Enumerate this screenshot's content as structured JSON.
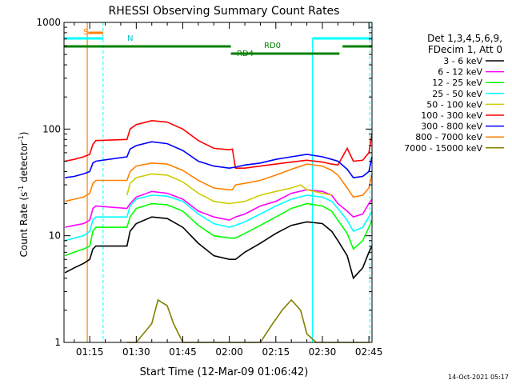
{
  "chart_data": {
    "type": "line",
    "title": "RHESSI Observing Summary Count Rates",
    "xlabel": "Start Time (12-Mar-09 01:06:42)",
    "ylabel_main": "Count Rate (s",
    "ylabel_sup1": "-1",
    "ylabel_mid": " detector",
    "ylabel_sup2": "-1",
    "ylabel_end": ")",
    "y_scale": "log",
    "ylim": [
      1,
      1000
    ],
    "x_range": [
      "01:06:42",
      "02:46:00"
    ],
    "x_ticks": [
      {
        "label": "01:15",
        "t": 75
      },
      {
        "label": "01:30",
        "t": 90
      },
      {
        "label": "01:45",
        "t": 105
      },
      {
        "label": "02:00",
        "t": 120
      },
      {
        "label": "02:15",
        "t": 135
      },
      {
        "label": "02:30",
        "t": 150
      },
      {
        "label": "02:45",
        "t": 165
      }
    ],
    "y_ticks": [
      {
        "label": "1",
        "v": 1
      },
      {
        "label": "10",
        "v": 10
      },
      {
        "label": "100",
        "v": 100
      },
      {
        "label": "1000",
        "v": 1000
      }
    ],
    "legend_header": [
      "Det 1,3,4,5,6,9,",
      "FDecim 1, Att 0"
    ],
    "legend_placement": "right",
    "series": [
      {
        "name": "3 - 6 keV",
        "color": "#000000",
        "points": [
          [
            67,
            4.5
          ],
          [
            70,
            5
          ],
          [
            73,
            5.5
          ],
          [
            75,
            6
          ],
          [
            76,
            7.5
          ],
          [
            77,
            8
          ],
          [
            87,
            8
          ],
          [
            88,
            11
          ],
          [
            90,
            13
          ],
          [
            95,
            15
          ],
          [
            100,
            14.5
          ],
          [
            105,
            12
          ],
          [
            110,
            8.5
          ],
          [
            115,
            6.5
          ],
          [
            120,
            6
          ],
          [
            122,
            6
          ],
          [
            125,
            7
          ],
          [
            130,
            8.5
          ],
          [
            135,
            10.5
          ],
          [
            140,
            12.5
          ],
          [
            145,
            13.5
          ],
          [
            150,
            13
          ],
          [
            153,
            11
          ],
          [
            155,
            9
          ],
          [
            158,
            6.5
          ],
          [
            160,
            4
          ],
          [
            163,
            5
          ],
          [
            165,
            7
          ],
          [
            166,
            8
          ]
        ]
      },
      {
        "name": "6 - 12 keV",
        "color": "#ff00ff",
        "points": [
          [
            67,
            12
          ],
          [
            70,
            12.5
          ],
          [
            73,
            13
          ],
          [
            75,
            14
          ],
          [
            76,
            18
          ],
          [
            77,
            19
          ],
          [
            87,
            18
          ],
          [
            88,
            20
          ],
          [
            90,
            23
          ],
          [
            95,
            26
          ],
          [
            100,
            25
          ],
          [
            105,
            22
          ],
          [
            110,
            17
          ],
          [
            115,
            15
          ],
          [
            120,
            14
          ],
          [
            122,
            15
          ],
          [
            125,
            16
          ],
          [
            130,
            19
          ],
          [
            135,
            21
          ],
          [
            140,
            25
          ],
          [
            145,
            27
          ],
          [
            150,
            26
          ],
          [
            153,
            24
          ],
          [
            155,
            20
          ],
          [
            158,
            17
          ],
          [
            160,
            15
          ],
          [
            163,
            16
          ],
          [
            165,
            20
          ],
          [
            166,
            22
          ]
        ]
      },
      {
        "name": "12 - 25 keV",
        "color": "#00ff00",
        "points": [
          [
            67,
            6.5
          ],
          [
            70,
            7
          ],
          [
            73,
            7.5
          ],
          [
            75,
            8
          ],
          [
            76,
            11
          ],
          [
            77,
            12
          ],
          [
            87,
            12
          ],
          [
            88,
            15
          ],
          [
            90,
            18
          ],
          [
            95,
            20
          ],
          [
            100,
            19.5
          ],
          [
            105,
            17
          ],
          [
            110,
            12.5
          ],
          [
            115,
            10
          ],
          [
            120,
            9.5
          ],
          [
            122,
            9.5
          ],
          [
            125,
            10.5
          ],
          [
            130,
            12.5
          ],
          [
            135,
            15
          ],
          [
            140,
            18
          ],
          [
            145,
            20
          ],
          [
            150,
            19
          ],
          [
            153,
            17
          ],
          [
            155,
            14
          ],
          [
            158,
            10.5
          ],
          [
            160,
            7.5
          ],
          [
            163,
            9
          ],
          [
            165,
            12
          ],
          [
            166,
            14
          ]
        ]
      },
      {
        "name": "25 - 50 keV",
        "color": "#00ffff",
        "points": [
          [
            67,
            9
          ],
          [
            70,
            9.5
          ],
          [
            73,
            10
          ],
          [
            75,
            11
          ],
          [
            76,
            14
          ],
          [
            77,
            15
          ],
          [
            87,
            15
          ],
          [
            88,
            19
          ],
          [
            90,
            22
          ],
          [
            95,
            24
          ],
          [
            100,
            23.5
          ],
          [
            105,
            21
          ],
          [
            110,
            16
          ],
          [
            115,
            13
          ],
          [
            120,
            12
          ],
          [
            122,
            12.5
          ],
          [
            125,
            13.5
          ],
          [
            130,
            16
          ],
          [
            135,
            19
          ],
          [
            140,
            22
          ],
          [
            145,
            24
          ],
          [
            150,
            23
          ],
          [
            153,
            21
          ],
          [
            155,
            18
          ],
          [
            158,
            14
          ],
          [
            160,
            11
          ],
          [
            163,
            12
          ],
          [
            165,
            15
          ],
          [
            166,
            17
          ]
        ]
      },
      {
        "name": "50 - 100 keV",
        "color": "#cccc00",
        "points": [
          [
            87,
            24
          ],
          [
            88,
            31
          ],
          [
            90,
            35
          ],
          [
            95,
            38
          ],
          [
            100,
            37
          ],
          [
            105,
            32
          ],
          [
            110,
            25
          ],
          [
            115,
            21
          ],
          [
            120,
            20
          ],
          [
            125,
            21
          ],
          [
            130,
            24
          ],
          [
            135,
            26
          ],
          [
            140,
            28
          ],
          [
            143,
            30
          ],
          [
            145,
            27
          ],
          [
            150,
            25
          ],
          [
            153,
            24
          ]
        ]
      },
      {
        "name": "100 - 300 keV",
        "color": "#ff0000",
        "points": [
          [
            67,
            50
          ],
          [
            70,
            52
          ],
          [
            73,
            55
          ],
          [
            75,
            58
          ],
          [
            76,
            72
          ],
          [
            77,
            78
          ],
          [
            87,
            80
          ],
          [
            88,
            100
          ],
          [
            90,
            110
          ],
          [
            95,
            120
          ],
          [
            100,
            116
          ],
          [
            105,
            100
          ],
          [
            110,
            78
          ],
          [
            115,
            66
          ],
          [
            120,
            64
          ],
          [
            121,
            65
          ],
          [
            122,
            43
          ],
          [
            125,
            43
          ],
          [
            130,
            45
          ],
          [
            135,
            47
          ],
          [
            140,
            49
          ],
          [
            145,
            51
          ],
          [
            150,
            49
          ],
          [
            153,
            47
          ],
          [
            155,
            46
          ],
          [
            158,
            66
          ],
          [
            160,
            50
          ],
          [
            163,
            51
          ],
          [
            165,
            60
          ],
          [
            166,
            90
          ]
        ]
      },
      {
        "name": "300 - 800 keV",
        "color": "#0000ff",
        "points": [
          [
            67,
            35
          ],
          [
            70,
            36
          ],
          [
            73,
            38
          ],
          [
            75,
            40
          ],
          [
            76,
            48
          ],
          [
            77,
            50
          ],
          [
            87,
            55
          ],
          [
            88,
            65
          ],
          [
            90,
            70
          ],
          [
            95,
            76
          ],
          [
            100,
            73
          ],
          [
            105,
            63
          ],
          [
            110,
            50
          ],
          [
            115,
            45
          ],
          [
            120,
            43
          ],
          [
            122,
            44
          ],
          [
            125,
            46
          ],
          [
            130,
            48
          ],
          [
            135,
            52
          ],
          [
            140,
            55
          ],
          [
            145,
            58
          ],
          [
            150,
            55
          ],
          [
            153,
            52
          ],
          [
            155,
            50
          ],
          [
            158,
            42
          ],
          [
            160,
            35
          ],
          [
            163,
            36
          ],
          [
            165,
            40
          ],
          [
            166,
            55
          ]
        ]
      },
      {
        "name": "800 - 7000 keV",
        "color": "#ff8000",
        "points": [
          [
            67,
            21
          ],
          [
            70,
            22
          ],
          [
            73,
            23
          ],
          [
            75,
            25
          ],
          [
            76,
            31
          ],
          [
            77,
            33
          ],
          [
            87,
            33
          ],
          [
            88,
            40
          ],
          [
            90,
            45
          ],
          [
            95,
            48
          ],
          [
            100,
            47
          ],
          [
            105,
            41
          ],
          [
            110,
            33
          ],
          [
            115,
            28
          ],
          [
            120,
            27
          ],
          [
            121,
            27
          ],
          [
            122,
            30
          ],
          [
            125,
            31
          ],
          [
            130,
            33
          ],
          [
            135,
            37
          ],
          [
            140,
            42
          ],
          [
            145,
            47
          ],
          [
            150,
            45
          ],
          [
            153,
            41
          ],
          [
            155,
            37
          ],
          [
            158,
            28
          ],
          [
            160,
            23
          ],
          [
            163,
            24
          ],
          [
            165,
            28
          ],
          [
            166,
            38
          ]
        ]
      },
      {
        "name": "7000 - 15000 keV",
        "color": "#808000",
        "points": [
          [
            87,
            1
          ],
          [
            90,
            1
          ],
          [
            95,
            1.5
          ],
          [
            97,
            2.5
          ],
          [
            100,
            2.2
          ],
          [
            102,
            1.5
          ],
          [
            105,
            1
          ],
          [
            130,
            1
          ],
          [
            134,
            1.5
          ],
          [
            137,
            2
          ],
          [
            140,
            2.5
          ],
          [
            143,
            2
          ],
          [
            145,
            1.2
          ],
          [
            148,
            1
          ],
          [
            165,
            1
          ]
        ]
      }
    ],
    "annotations": {
      "s_label": "S",
      "n_label": "N",
      "rd0_label": "RD0",
      "rd4_label": "RD4"
    },
    "colors": {
      "axis": "#000000",
      "s_bar": "#ff8000",
      "n_bar": "#00ffff",
      "rd_bar": "#008000",
      "dashed": "#00ffff"
    }
  },
  "footer": {
    "timestamp": "14-Oct-2021 05:17"
  }
}
